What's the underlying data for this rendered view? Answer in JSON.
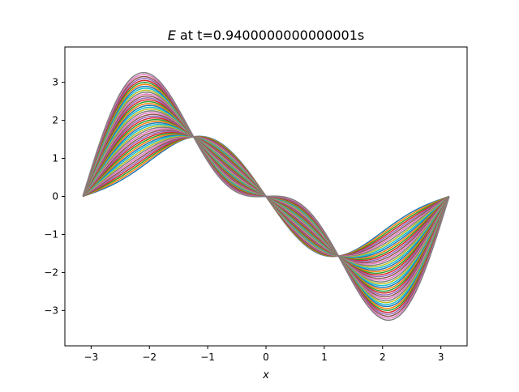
{
  "chart_data": {
    "type": "line",
    "title_var": "E",
    "title_rest": " at t=0.9400000000000001s",
    "xlabel": "x",
    "ylabel": "",
    "xlim": [
      -3.45,
      3.45
    ],
    "ylim": [
      -3.93,
      3.93
    ],
    "xticks": [
      -3,
      -2,
      -1,
      0,
      1,
      2,
      3
    ],
    "xtick_labels": [
      "−3",
      "−2",
      "−1",
      "0",
      "1",
      "2",
      "3"
    ],
    "yticks": [
      -3,
      -2,
      -1,
      0,
      1,
      2,
      3
    ],
    "ytick_labels": [
      "−3",
      "−2",
      "−1",
      "0",
      "1",
      "2",
      "3"
    ],
    "grid": false,
    "legend": "none",
    "series_count": 48,
    "curve_model": "E(x) = -a*sin(x) - b*sin(2x)",
    "amplitude_a_range": [
      1.38,
      2.48
    ],
    "amplitude_b_range": [
      0.43,
      -1.28
    ],
    "x_range": [
      -3.14159,
      3.14159
    ],
    "colors": [
      "#1f77b4",
      "#ff7f0e",
      "#2ca02c",
      "#d62728",
      "#9467bd",
      "#8c564b",
      "#e377c2",
      "#7f7f7f",
      "#bcbd22",
      "#17becf"
    ]
  }
}
